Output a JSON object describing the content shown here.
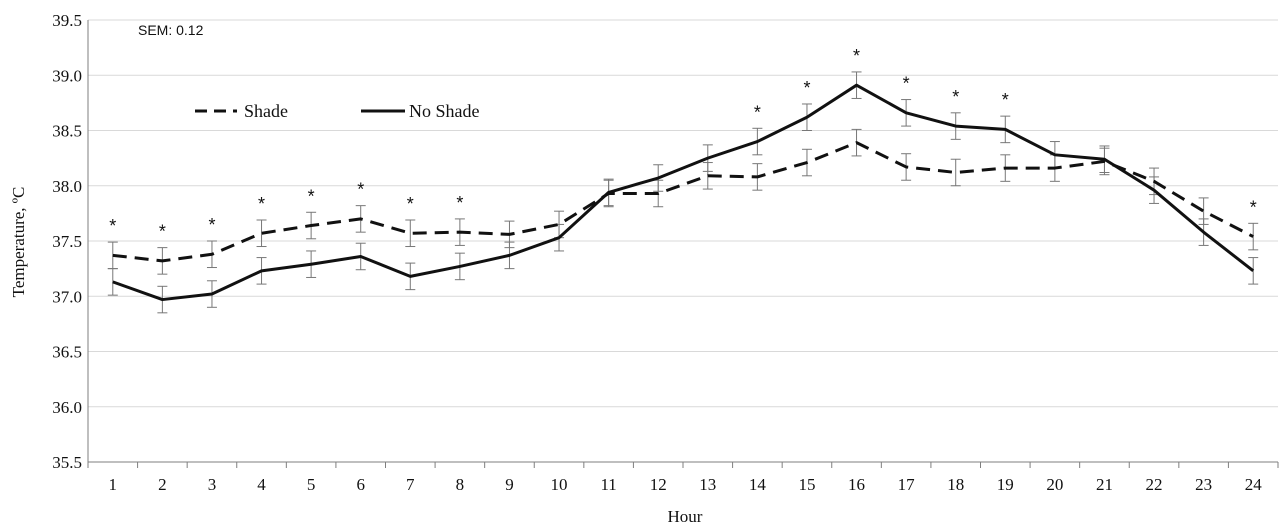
{
  "chart_data": {
    "type": "line",
    "xlabel": "Hour",
    "ylabel": "Temperature, ºC",
    "ylim": [
      35.5,
      39.5
    ],
    "y_ticks": [
      "35.5",
      "36.0",
      "36.5",
      "37.0",
      "37.5",
      "38.0",
      "38.5",
      "39.0",
      "39.5"
    ],
    "categories": [
      "1",
      "2",
      "3",
      "4",
      "5",
      "6",
      "7",
      "8",
      "9",
      "10",
      "11",
      "12",
      "13",
      "14",
      "15",
      "16",
      "17",
      "18",
      "19",
      "20",
      "21",
      "22",
      "23",
      "24"
    ],
    "grid": "horizontal",
    "legend_position": "top-left",
    "annotation": "SEM: 0.12",
    "significance_marker": "*",
    "significant_hours": [
      "1",
      "2",
      "3",
      "4",
      "5",
      "6",
      "7",
      "8",
      "14",
      "15",
      "16",
      "17",
      "18",
      "19",
      "24"
    ],
    "error_bar": 0.12,
    "series": [
      {
        "name": "Shade",
        "style": "dashed",
        "color": "#111111",
        "values": [
          37.37,
          37.32,
          37.38,
          37.57,
          37.64,
          37.7,
          37.57,
          37.58,
          37.56,
          37.65,
          37.93,
          37.93,
          38.09,
          38.08,
          38.21,
          38.39,
          38.17,
          38.12,
          38.16,
          38.16,
          38.22,
          38.04,
          37.77,
          37.54
        ]
      },
      {
        "name": "No Shade",
        "style": "solid",
        "color": "#111111",
        "values": [
          37.13,
          36.97,
          37.02,
          37.23,
          37.29,
          37.36,
          37.18,
          37.27,
          37.37,
          37.53,
          37.94,
          38.07,
          38.25,
          38.4,
          38.62,
          38.91,
          38.66,
          38.54,
          38.51,
          38.28,
          38.24,
          37.96,
          37.58,
          37.23
        ]
      }
    ]
  }
}
